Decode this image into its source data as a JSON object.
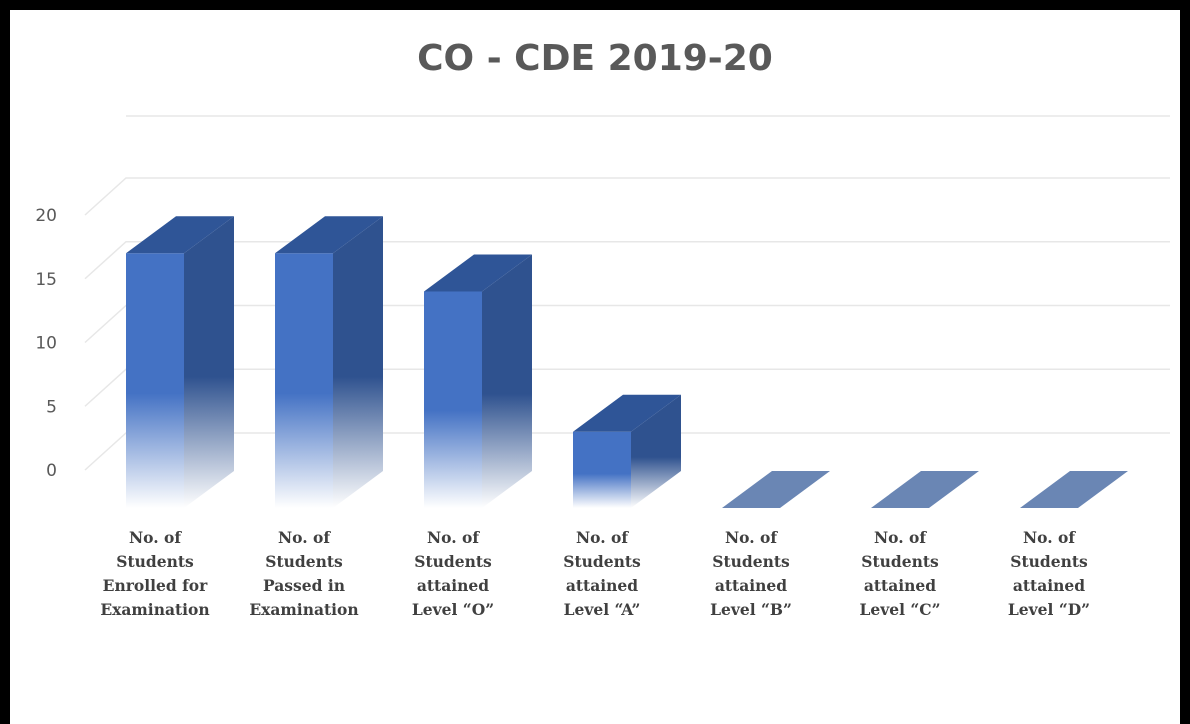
{
  "chart_data": {
    "type": "bar",
    "title": "CO - CDE 2019-20",
    "xlabel": "",
    "ylabel": "",
    "ylim": [
      0,
      20
    ],
    "yticks": [
      "0",
      "5",
      "10",
      "15",
      "20"
    ],
    "grid": true,
    "style": "3d",
    "categories": [
      [
        "No. of",
        "Students",
        "Enrolled for",
        "Examination"
      ],
      [
        "No. of",
        "Students",
        "Passed in",
        "Examination"
      ],
      [
        "No. of",
        "Students",
        "attained",
        "Level “O”"
      ],
      [
        "No. of",
        "Students",
        "attained",
        "Level “A”"
      ],
      [
        "No. of",
        "Students",
        "attained",
        "Level “B”"
      ],
      [
        "No. of",
        "Students",
        "attained",
        "Level “C”"
      ],
      [
        "No. of",
        "Students",
        "attained",
        "Level “D”"
      ]
    ],
    "values": [
      17,
      17,
      14,
      3,
      0,
      0,
      0
    ],
    "colors": {
      "front": "#4472C4",
      "side": "#2F528F",
      "top": "#2F5597",
      "zero": "#6A86B4",
      "grid": "#E7E7E7"
    }
  }
}
